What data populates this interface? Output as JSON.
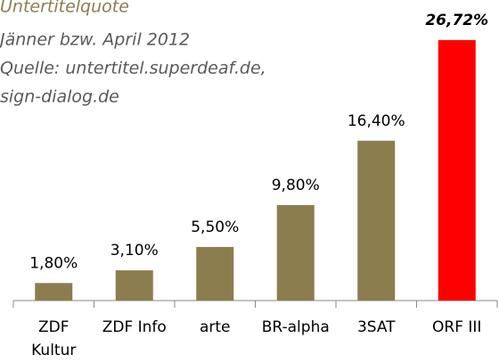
{
  "chart_data": {
    "type": "bar",
    "title": "Untertitelquote",
    "subtitle": [
      "Jänner  bzw. April 2012",
      "Quelle: untertitel.superdeaf.de,",
      "sign-dialog.de"
    ],
    "categories": [
      "ZDF\nKultur",
      "ZDF Info",
      "arte",
      "BR-alpha",
      "3SAT",
      "ORF III"
    ],
    "values": [
      1.8,
      3.1,
      5.5,
      9.8,
      16.4,
      26.72
    ],
    "value_labels": [
      "1,80%",
      "3,10%",
      "5,50%",
      "9,80%",
      "16,40%",
      "26,72%"
    ],
    "colors": [
      "#8c7d4f",
      "#8c7d4f",
      "#8c7d4f",
      "#8c7d4f",
      "#8c7d4f",
      "#ff0000"
    ]
  }
}
